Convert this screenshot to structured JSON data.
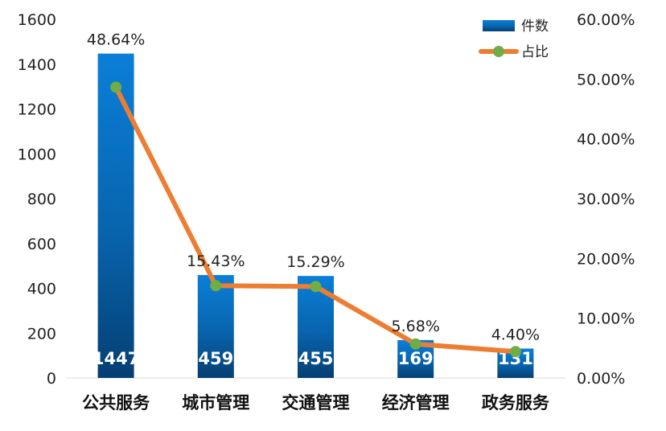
{
  "chart_data": {
    "type": "bar",
    "categories": [
      "公共服务",
      "城市管理",
      "交通管理",
      "经济管理",
      "政务服务"
    ],
    "series": [
      {
        "name": "件数",
        "type": "bar",
        "axis": "left",
        "values": [
          1447,
          459,
          455,
          169,
          131
        ],
        "value_labels": [
          "1447",
          "459",
          "455",
          "169",
          "131"
        ],
        "color": "#0a6fc4"
      },
      {
        "name": "占比",
        "type": "line",
        "axis": "right",
        "values": [
          48.64,
          15.43,
          15.29,
          5.68,
          4.4
        ],
        "value_labels": [
          "48.64%",
          "15.43%",
          "15.29%",
          "5.68%",
          "4.40%"
        ],
        "color": "#ed7d31",
        "marker_color": "#70ad47"
      }
    ],
    "y_left": {
      "ylim": [
        0,
        1600
      ],
      "ticks": [
        "0",
        "200",
        "400",
        "600",
        "800",
        "1000",
        "1200",
        "1400",
        "1600"
      ]
    },
    "y_right": {
      "ylim": [
        0,
        60
      ],
      "ticks": [
        "0.00%",
        "10.00%",
        "20.00%",
        "30.00%",
        "40.00%",
        "50.00%",
        "60.00%"
      ]
    },
    "legend": "top-right",
    "grid": false
  }
}
